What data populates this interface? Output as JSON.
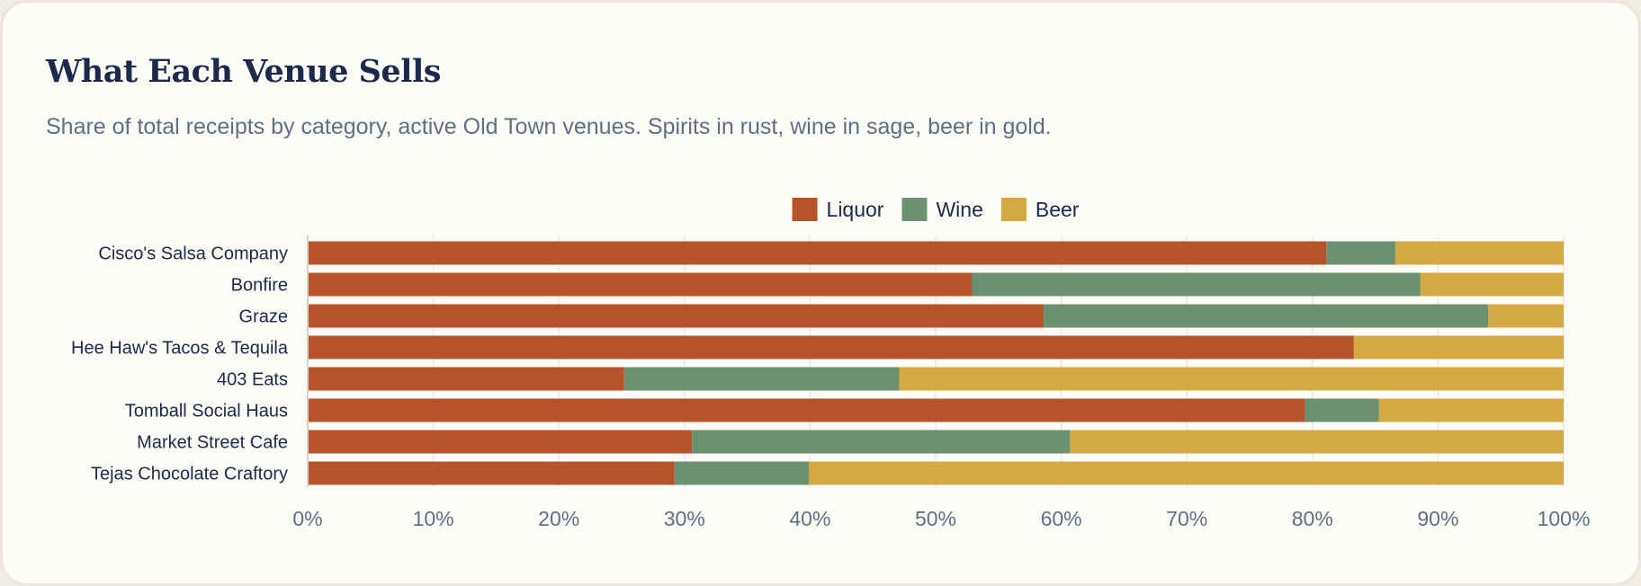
{
  "title": "What Each Venue Sells",
  "subtitle": "Share of total receipts by category, active Old Town venues. Spirits in rust, wine in sage, beer in gold.",
  "chart_data": {
    "type": "bar",
    "orientation": "horizontal",
    "stacked": true,
    "categories": [
      "Cisco's Salsa Company",
      "Bonfire",
      "Graze",
      "Hee Haw's Tacos & Tequila",
      "403 Eats",
      "Tomball Social Haus",
      "Market Street Cafe",
      "Tejas Chocolate Craftory"
    ],
    "series": [
      {
        "name": "Liquor",
        "color": "#b7532b",
        "values": [
          81.1,
          52.9,
          58.6,
          83.3,
          25.2,
          79.4,
          30.6,
          29.2
        ]
      },
      {
        "name": "Wine",
        "color": "#6b9170",
        "values": [
          5.5,
          35.7,
          35.4,
          0,
          21.9,
          5.9,
          30.1,
          10.7
        ]
      },
      {
        "name": "Beer",
        "color": "#d4a843",
        "values": [
          13.4,
          11.4,
          6.0,
          16.7,
          52.9,
          14.7,
          39.3,
          60.1
        ]
      }
    ],
    "xlim": [
      0,
      100
    ],
    "xticks": [
      "0%",
      "10%",
      "20%",
      "30%",
      "40%",
      "50%",
      "60%",
      "70%",
      "80%",
      "90%",
      "100%"
    ],
    "grid": "vertical",
    "legend_position": "top-center"
  }
}
